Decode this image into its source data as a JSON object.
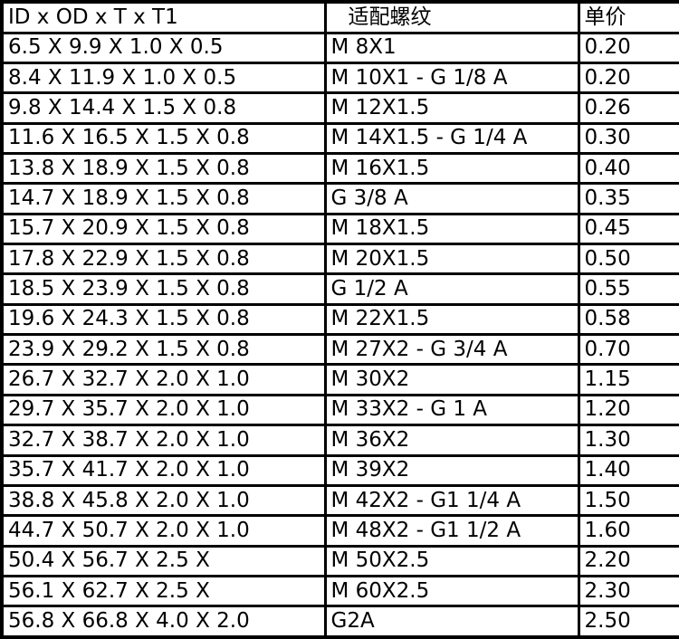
{
  "headers": [
    "ID x OD x T x T1",
    "适配螺纹",
    "单价"
  ],
  "rows": [
    [
      "6.5 X 9.9 X 1.0 X 0.5",
      "M 8X1",
      "0.20"
    ],
    [
      "8.4 X 11.9 X 1.0 X 0.5",
      "M 10X1 - G 1/8 A",
      "0.20"
    ],
    [
      "9.8 X 14.4 X 1.5 X 0.8",
      "M 12X1.5",
      "0.26"
    ],
    [
      "11.6 X 16.5 X 1.5 X 0.8",
      "M 14X1.5 - G 1/4 A",
      "0.30"
    ],
    [
      "13.8 X 18.9 X 1.5 X 0.8",
      "M 16X1.5",
      "0.40"
    ],
    [
      "14.7 X 18.9 X 1.5 X 0.8",
      "G 3/8 A",
      "0.35"
    ],
    [
      "15.7 X 20.9 X 1.5 X 0.8",
      "M 18X1.5",
      "0.45"
    ],
    [
      "17.8 X 22.9 X 1.5 X 0.8",
      "M 20X1.5",
      "0.50"
    ],
    [
      "18.5 X 23.9 X 1.5 X 0.8",
      "G 1/2 A",
      "0.55"
    ],
    [
      "19.6 X 24.3 X 1.5 X 0.8",
      "M 22X1.5",
      "0.58"
    ],
    [
      "23.9 X 29.2 X 1.5 X 0.8",
      "M 27X2 - G 3/4 A",
      "0.70"
    ],
    [
      "26.7 X 32.7 X 2.0 X 1.0",
      "M 30X2",
      "1.15"
    ],
    [
      "29.7 X 35.7 X 2.0 X 1.0",
      "M 33X2 - G 1 A",
      "1.20"
    ],
    [
      "32.7 X 38.7 X 2.0 X 1.0",
      "M 36X2",
      "1.30"
    ],
    [
      "35.7 X 41.7 X 2.0 X 1.0",
      "M 39X2",
      "1.40"
    ],
    [
      "38.8 X 45.8 X 2.0 X 1.0",
      "M 42X2 - G1 1/4 A",
      "1.50"
    ],
    [
      "44.7 X 50.7 X 2.0 X 1.0",
      "M 48X2 - G1 1/2 A",
      "1.60"
    ],
    [
      "50.4 X 56.7 X 2.5 X",
      "M 50X2.5",
      "2.20"
    ],
    [
      "56.1 X 62.7 X 2.5 X",
      "M 60X2.5",
      "2.30"
    ],
    [
      "56.8 X 66.8 X 4.0 X 2.0",
      "G2A",
      "2.50"
    ]
  ]
}
